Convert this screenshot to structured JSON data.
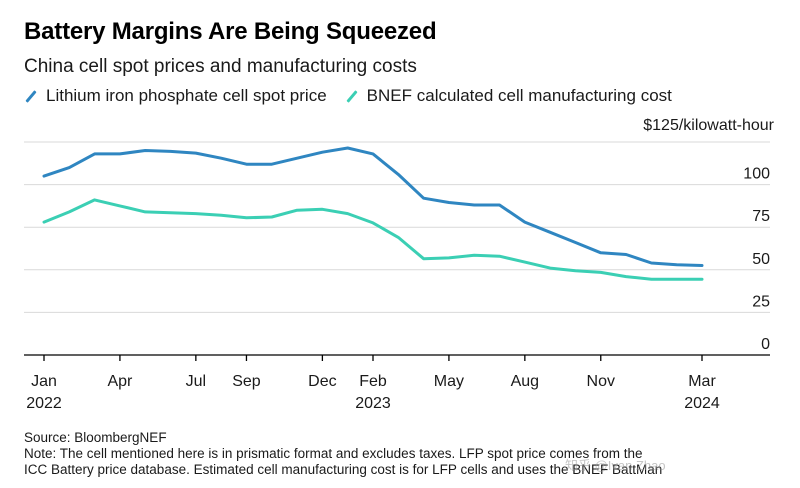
{
  "title": "Battery Margins Are Being Squeezed",
  "subtitle": "China cell spot prices and manufacturing costs",
  "colors": {
    "series1": "#2f86c1",
    "series2": "#3bcfb4",
    "grid": "#d9d9d9",
    "axis": "#000000"
  },
  "footer": {
    "source": "Source: BloombergNEF",
    "note_line1": "Note: The cell mentioned here is in prismatic format and excludes taxes. LFP spot price comes from the",
    "note_line2": "ICC Battery price database. Estimated cell manufacturing cost is for LFP cells and uses the BNEF BattMan"
  },
  "watermark": "知乎 @Ivan Zhao",
  "chart_data": {
    "type": "line",
    "title": "Battery Margins Are Being Squeezed",
    "subtitle": "China cell spot prices and manufacturing costs",
    "ylabel": "$/kilowatt-hour",
    "unit_label": "$125/kilowatt-hour",
    "ylim": [
      0,
      125
    ],
    "yticks": [
      0,
      25,
      50,
      75,
      100
    ],
    "ytick_labels": [
      "0",
      "25",
      "50",
      "75",
      "100"
    ],
    "xlim": [
      0,
      26
    ],
    "xticks": [
      {
        "x": 0,
        "label": "Jan",
        "sublabel": "2022"
      },
      {
        "x": 3,
        "label": "Apr",
        "sublabel": ""
      },
      {
        "x": 6,
        "label": "Jul",
        "sublabel": ""
      },
      {
        "x": 8,
        "label": "Sep",
        "sublabel": ""
      },
      {
        "x": 11,
        "label": "Dec",
        "sublabel": ""
      },
      {
        "x": 13,
        "label": "Feb",
        "sublabel": "2023"
      },
      {
        "x": 16,
        "label": "May",
        "sublabel": ""
      },
      {
        "x": 19,
        "label": "Aug",
        "sublabel": ""
      },
      {
        "x": 22,
        "label": "Nov",
        "sublabel": ""
      },
      {
        "x": 26,
        "label": "Mar",
        "sublabel": "2024"
      }
    ],
    "x": [
      0,
      1,
      2,
      3,
      4,
      5,
      6,
      7,
      8,
      9,
      10,
      11,
      12,
      13,
      14,
      15,
      16,
      17,
      18,
      19,
      20,
      21,
      22,
      23,
      24,
      25,
      26
    ],
    "series": [
      {
        "name": "Lithium iron phosphate cell spot price",
        "color_key": "series1",
        "values": [
          105,
          110,
          118,
          118,
          120,
          119.5,
          118.5,
          115.5,
          112,
          112,
          115.5,
          119,
          121.5,
          118,
          106,
          92,
          89.5,
          88,
          88,
          78,
          72,
          66,
          60,
          59,
          54,
          53,
          52.5
        ]
      },
      {
        "name": "BNEF calculated cell manufacturing cost",
        "color_key": "series2",
        "values": [
          78,
          84,
          91,
          87.5,
          84,
          83.5,
          83,
          82,
          80.5,
          81,
          85,
          85.5,
          83,
          77.5,
          69,
          56.5,
          57,
          58.5,
          58,
          54.5,
          51,
          49.5,
          48.5,
          46,
          44.5,
          44.5,
          44.5
        ]
      }
    ]
  }
}
